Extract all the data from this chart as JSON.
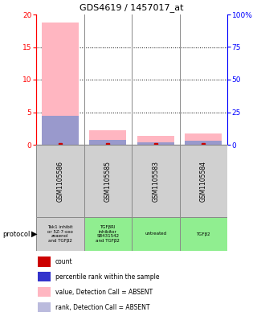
{
  "title": "GDS4619 / 1457017_at",
  "samples": [
    "GSM1105586",
    "GSM1105585",
    "GSM1105583",
    "GSM1105584"
  ],
  "protocols": [
    "Tak1 inhibit\nor 5Z-7-oxo\nzeaenol\nand TGFβ2",
    "TGFβRI\ninhibitor\nSB431542\nand TGFβ2",
    "untreated",
    "TGFβ2"
  ],
  "protocol_colors": [
    "#d0d0d0",
    "#90ee90",
    "#90ee90",
    "#90ee90"
  ],
  "bar_values_pink": [
    18.8,
    2.2,
    1.4,
    1.7
  ],
  "bar_values_blue_pct": [
    22,
    3.5,
    2.0,
    3.0
  ],
  "ylim_left": [
    0,
    20
  ],
  "ylim_right": [
    0,
    100
  ],
  "yticks_left": [
    0,
    5,
    10,
    15,
    20
  ],
  "yticks_right": [
    0,
    25,
    50,
    75,
    100
  ],
  "ytick_labels_right": [
    "0",
    "25",
    "50",
    "75",
    "100%"
  ],
  "pink_color": "#ffb6c1",
  "blue_color": "#9999cc",
  "count_color": "#cc0000",
  "blue_legend_color": "#3333cc",
  "sample_bg_color": "#d0d0d0",
  "border_color": "#888888",
  "grid_color": "#888888",
  "legend_colors": [
    "#cc0000",
    "#3333cc",
    "#ffb6c1",
    "#bbbbdd"
  ],
  "legend_texts": [
    "count",
    "percentile rank within the sample",
    "value, Detection Call = ABSENT",
    "rank, Detection Call = ABSENT"
  ]
}
